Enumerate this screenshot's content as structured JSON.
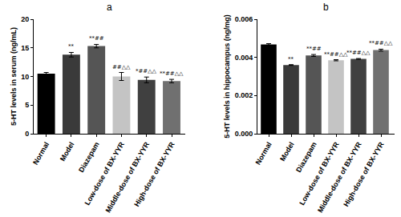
{
  "chart_data": [
    {
      "type": "bar",
      "title": "a",
      "y_label": "5-HT levels in serum (ng/mL)",
      "categories": [
        "Normal",
        "Model",
        "Diazepam",
        "Low-dose of BX-YYR",
        "Middle-dose of BX-YYR",
        "High-dose of BX-YYR"
      ],
      "values": [
        10.5,
        13.8,
        15.3,
        10.0,
        9.4,
        9.2
      ],
      "errors": [
        0.2,
        0.4,
        0.3,
        0.7,
        0.5,
        0.3
      ],
      "annotations": [
        null,
        "**",
        "**##",
        "##△△",
        "*##△△",
        "**##△△"
      ],
      "colors": [
        "#000000",
        "#3a3a3a",
        "#555555",
        "#c4c4c4",
        "#404040",
        "#707070"
      ],
      "ylim": [
        0,
        20
      ],
      "yticks": [
        0,
        5,
        10,
        15,
        20
      ],
      "grid": false
    },
    {
      "type": "bar",
      "title": "b",
      "y_label": "5-HT levels in hippocampus (ng/mg)",
      "categories": [
        "Normal",
        "Model",
        "Diazepam",
        "Low-dose of BX-YYR",
        "Middle-dose of BX-YYR",
        "High-dose of BX-YYR"
      ],
      "values": [
        0.00468,
        0.0036,
        0.0041,
        0.00385,
        0.00392,
        0.00438
      ],
      "errors": [
        4e-05,
        2e-05,
        5e-05,
        3e-05,
        2e-05,
        5e-05
      ],
      "annotations": [
        null,
        "**",
        "**##",
        "**##△△",
        "**##△△",
        "**##△△"
      ],
      "colors": [
        "#000000",
        "#3a3a3a",
        "#555555",
        "#c4c4c4",
        "#404040",
        "#707070"
      ],
      "ylim": [
        0,
        0.006
      ],
      "yticks": [
        {
          "value": 0,
          "label": "0.000"
        },
        {
          "value": 0.002,
          "label": "0.002"
        },
        {
          "value": 0.004,
          "label": "0.004"
        },
        {
          "value": 0.006,
          "label": "0.006"
        }
      ],
      "grid": false
    }
  ]
}
